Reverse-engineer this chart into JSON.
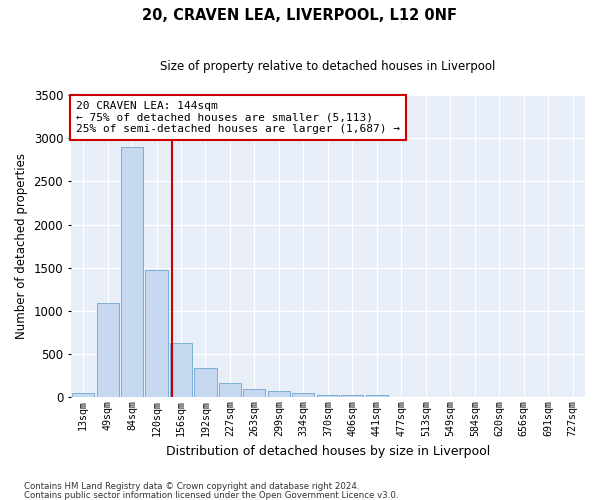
{
  "title1": "20, CRAVEN LEA, LIVERPOOL, L12 0NF",
  "title2": "Size of property relative to detached houses in Liverpool",
  "xlabel": "Distribution of detached houses by size in Liverpool",
  "ylabel": "Number of detached properties",
  "categories": [
    "13sqm",
    "49sqm",
    "84sqm",
    "120sqm",
    "156sqm",
    "192sqm",
    "227sqm",
    "263sqm",
    "299sqm",
    "334sqm",
    "370sqm",
    "406sqm",
    "441sqm",
    "477sqm",
    "513sqm",
    "549sqm",
    "584sqm",
    "620sqm",
    "656sqm",
    "691sqm",
    "727sqm"
  ],
  "values": [
    50,
    1090,
    2900,
    1470,
    630,
    340,
    170,
    100,
    75,
    50,
    25,
    28,
    22,
    5,
    3,
    2,
    1,
    1,
    0,
    0,
    0
  ],
  "bar_color": "#c5d8ef",
  "bar_edge_color": "#7bafd4",
  "vline_x": 3.62,
  "vline_color": "#cc0000",
  "annotation_text": "20 CRAVEN LEA: 144sqm\n← 75% of detached houses are smaller (5,113)\n25% of semi-detached houses are larger (1,687) →",
  "annotation_box_color": "#ffffff",
  "annotation_box_edge": "#cc0000",
  "ylim": [
    0,
    3500
  ],
  "yticks": [
    0,
    500,
    1000,
    1500,
    2000,
    2500,
    3000,
    3500
  ],
  "bg_color": "#e8eef8",
  "grid_color": "#ffffff",
  "footer1": "Contains HM Land Registry data © Crown copyright and database right 2024.",
  "footer2": "Contains public sector information licensed under the Open Government Licence v3.0."
}
